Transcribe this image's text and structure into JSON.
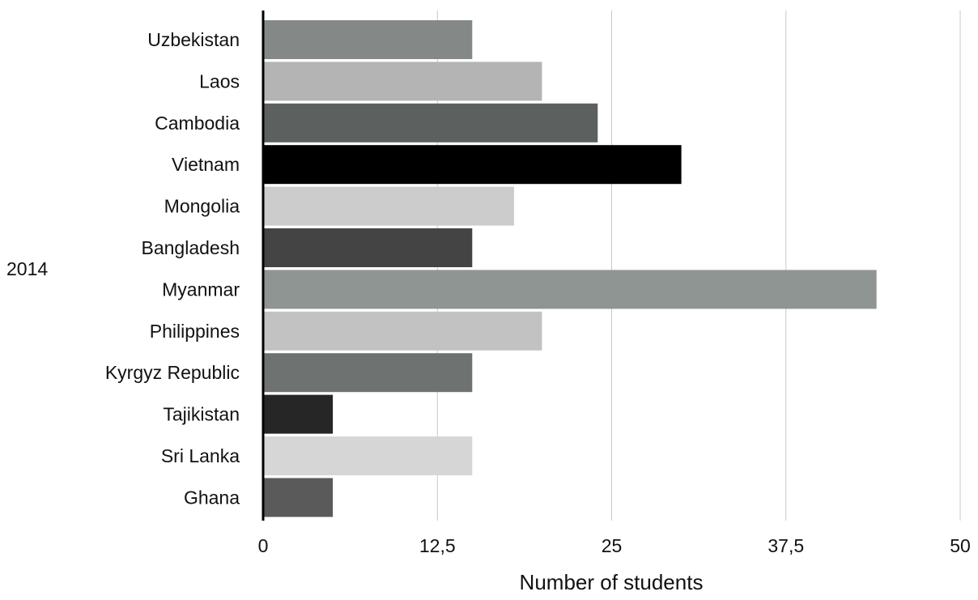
{
  "chart_data": {
    "type": "bar",
    "orientation": "horizontal",
    "group_label": "2014",
    "categories": [
      "Uzbekistan",
      "Laos",
      "Cambodia",
      "Vietnam",
      "Mongolia",
      "Bangladesh",
      "Myanmar",
      "Philippines",
      "Kyrgyz Republic",
      "Tajikistan",
      "Sri Lanka",
      "Ghana"
    ],
    "values": [
      15,
      20,
      24,
      30,
      18,
      15,
      44,
      20,
      15,
      5,
      15,
      5
    ],
    "colors": [
      "#848886",
      "#b4b4b4",
      "#5c605e",
      "#000000",
      "#cccccc",
      "#444444",
      "#8f9592",
      "#c2c2c2",
      "#6e7270",
      "#262626",
      "#d6d6d6",
      "#5a5a5a"
    ],
    "xlim": [
      0,
      50
    ],
    "xticks": [
      0,
      12.5,
      25,
      37.5,
      50
    ],
    "xtick_labels": [
      "0",
      "12,5",
      "25",
      "37,5",
      "50"
    ],
    "xlabel": "Number of students",
    "ylabel": "",
    "title": "",
    "grid": "vertical"
  }
}
